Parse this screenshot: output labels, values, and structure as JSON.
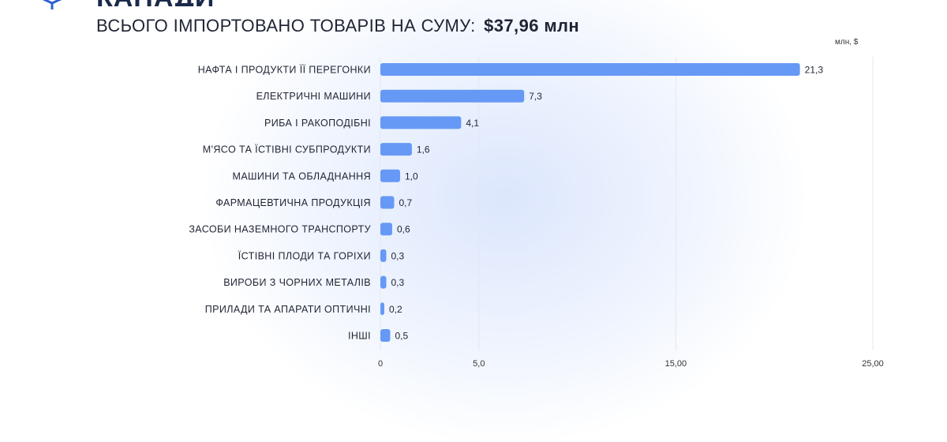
{
  "header": {
    "heading_partial": "КАНАДИ",
    "subtitle_prefix": "ВСЬОГО ІМПОРТОВАНО ТОВАРІВ НА СУМУ:",
    "subtitle_total": "$37,96 млн",
    "logo_icon": "box-logo-icon"
  },
  "colors": {
    "bar": "#6699f5",
    "grid": "#e3e7ee",
    "text": "#1f2433"
  },
  "chart_data": {
    "type": "bar",
    "orientation": "horizontal",
    "unit_label": "млн, $",
    "categories": [
      "НАФТА І ПРОДУКТИ ЇЇ ПЕРЕГОНКИ",
      "ЕЛЕКТРИЧНІ МАШИНИ",
      "РИБА І РАКОПОДІБНІ",
      "М'ЯСО ТА ЇСТІВНІ СУБПРОДУКТИ",
      "МАШИНИ ТА ОБЛАДНАННЯ",
      "ФАРМАЦЕВТИЧНА ПРОДУКЦІЯ",
      "ЗАСОБИ НАЗЕМНОГО ТРАНСПОРТУ",
      "ЇСТІВНІ ПЛОДИ ТА ГОРІХИ",
      "ВИРОБИ З ЧОРНИХ МЕТАЛІВ",
      "ПРИЛАДИ ТА АПАРАТИ ОПТИЧНІ",
      "ІНШІ"
    ],
    "values": [
      21.3,
      7.3,
      4.1,
      1.6,
      1.0,
      0.7,
      0.6,
      0.3,
      0.3,
      0.2,
      0.5
    ],
    "value_labels": [
      "21,3",
      "7,3",
      "4,1",
      "1,6",
      "1,0",
      "0,7",
      "0,6",
      "0,3",
      "0,3",
      "0,2",
      "0,5"
    ],
    "xlim": [
      0,
      25
    ],
    "ticks": [
      0,
      5,
      15,
      25
    ],
    "tick_labels": [
      "0",
      "5,0",
      "15,00",
      "25,00"
    ],
    "grid": true
  }
}
